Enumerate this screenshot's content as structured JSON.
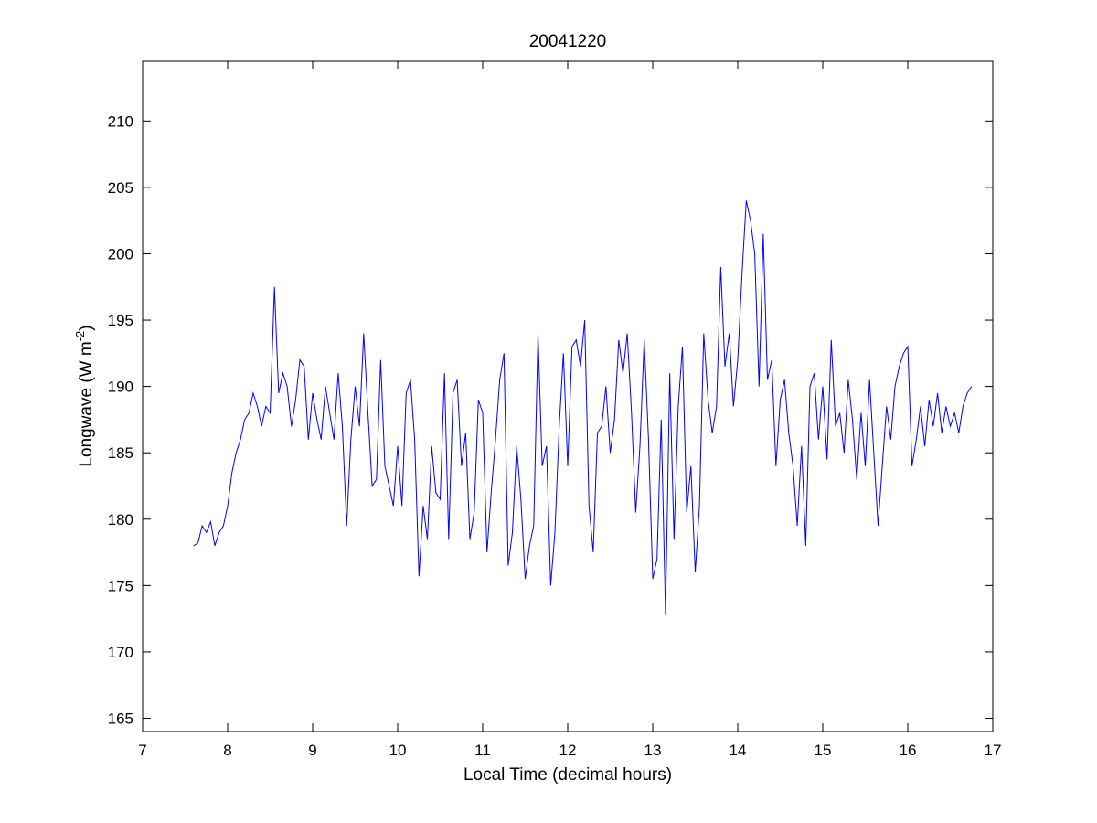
{
  "chart_data": {
    "type": "line",
    "title": "20041220",
    "xlabel": "Local Time (decimal hours)",
    "ylabel_main": "Longwave (W m",
    "ylabel_sup": "-2",
    "ylabel_close": ")",
    "xlim": [
      7,
      17
    ],
    "ylim": [
      164,
      214.5
    ],
    "xticks": [
      7,
      8,
      9,
      10,
      11,
      12,
      13,
      14,
      15,
      16,
      17
    ],
    "yticks": [
      165,
      170,
      175,
      180,
      185,
      190,
      195,
      200,
      205,
      210
    ],
    "grid": false,
    "line_color": "#0000ff",
    "series": [
      {
        "x": [
          7.6,
          7.65,
          7.7,
          7.75,
          7.8,
          7.85,
          7.9,
          7.95,
          8.0,
          8.05,
          8.1,
          8.15,
          8.2,
          8.25,
          8.3,
          8.35,
          8.4,
          8.45,
          8.5,
          8.55,
          8.6,
          8.65,
          8.7,
          8.75,
          8.8,
          8.85,
          8.9,
          8.95,
          9.0,
          9.05,
          9.1,
          9.15,
          9.2,
          9.25,
          9.3,
          9.35,
          9.4,
          9.45,
          9.5,
          9.55,
          9.6,
          9.65,
          9.7,
          9.75,
          9.8,
          9.85,
          9.9,
          9.95,
          10.0,
          10.05,
          10.1,
          10.15,
          10.2,
          10.25,
          10.3,
          10.35,
          10.4,
          10.45,
          10.5,
          10.55,
          10.6,
          10.65,
          10.7,
          10.75,
          10.8,
          10.85,
          10.9,
          10.95,
          11.0,
          11.05,
          11.1,
          11.15,
          11.2,
          11.25,
          11.3,
          11.35,
          11.4,
          11.45,
          11.5,
          11.55,
          11.6,
          11.65,
          11.7,
          11.75,
          11.8,
          11.85,
          11.9,
          11.95,
          12.0,
          12.05,
          12.1,
          12.15,
          12.2,
          12.25,
          12.3,
          12.35,
          12.4,
          12.45,
          12.5,
          12.55,
          12.6,
          12.65,
          12.7,
          12.75,
          12.8,
          12.85,
          12.9,
          12.95,
          13.0,
          13.05,
          13.1,
          13.15,
          13.2,
          13.25,
          13.3,
          13.35,
          13.4,
          13.45,
          13.5,
          13.55,
          13.6,
          13.65,
          13.7,
          13.75,
          13.8,
          13.85,
          13.9,
          13.95,
          14.0,
          14.05,
          14.1,
          14.15,
          14.2,
          14.25,
          14.3,
          14.35,
          14.4,
          14.45,
          14.5,
          14.55,
          14.6,
          14.65,
          14.7,
          14.75,
          14.8,
          14.85,
          14.9,
          14.95,
          15.0,
          15.05,
          15.1,
          15.15,
          15.2,
          15.25,
          15.3,
          15.35,
          15.4,
          15.45,
          15.5,
          15.55,
          15.6,
          15.65,
          15.7,
          15.75,
          15.8,
          15.85,
          15.9,
          15.95,
          16.0,
          16.05,
          16.1,
          16.15,
          16.2,
          16.25,
          16.3,
          16.35,
          16.4,
          16.45,
          16.5,
          16.55,
          16.6,
          16.65,
          16.7,
          16.75
        ],
        "values": [
          178.0,
          178.2,
          179.5,
          179.0,
          179.8,
          178.0,
          179.0,
          179.5,
          181.0,
          183.5,
          185.0,
          186.0,
          187.5,
          188.0,
          189.5,
          188.5,
          187.0,
          188.5,
          188.0,
          197.5,
          189.5,
          191.0,
          190.0,
          187.0,
          189.0,
          192.0,
          191.5,
          186.0,
          189.5,
          187.5,
          186.0,
          190.0,
          188.0,
          186.0,
          191.0,
          187.0,
          179.5,
          186.0,
          190.0,
          187.0,
          194.0,
          188.0,
          182.5,
          183.0,
          192.0,
          184.0,
          182.5,
          181.0,
          185.5,
          181.0,
          189.5,
          190.5,
          186.0,
          175.7,
          181.0,
          178.5,
          185.5,
          182.0,
          181.5,
          191.0,
          178.5,
          189.5,
          190.5,
          184.0,
          186.5,
          178.5,
          180.5,
          189.0,
          188.0,
          177.5,
          182.0,
          186.0,
          190.5,
          192.5,
          176.5,
          179.0,
          185.5,
          181.5,
          175.5,
          178.0,
          179.5,
          194.0,
          184.0,
          185.5,
          175.0,
          179.0,
          187.0,
          192.5,
          184.0,
          193.0,
          193.5,
          191.5,
          195.0,
          181.0,
          177.5,
          186.5,
          187.0,
          190.0,
          185.0,
          187.5,
          193.5,
          191.0,
          194.0,
          188.0,
          180.5,
          185.5,
          193.5,
          186.0,
          175.5,
          177.0,
          187.5,
          172.8,
          191.0,
          178.5,
          188.5,
          193.0,
          180.5,
          184.0,
          176.0,
          181.0,
          194.0,
          189.0,
          186.5,
          188.5,
          199.0,
          191.5,
          194.0,
          188.5,
          192.0,
          198.5,
          204.0,
          202.5,
          200.0,
          190.0,
          201.5,
          190.5,
          192.0,
          184.0,
          189.0,
          190.5,
          186.5,
          184.0,
          179.5,
          185.5,
          178.0,
          190.0,
          191.0,
          186.0,
          190.0,
          184.5,
          193.5,
          187.0,
          188.0,
          185.0,
          190.5,
          187.5,
          183.0,
          188.0,
          184.0,
          190.5,
          185.0,
          179.5,
          184.0,
          188.5,
          186.0,
          190.0,
          191.5,
          192.5,
          193.0,
          184.0,
          186.0,
          188.5,
          185.5,
          189.0,
          187.0,
          189.5,
          186.5,
          188.5,
          187.0,
          188.0,
          186.5,
          188.5,
          189.5,
          190.0
        ]
      }
    ]
  }
}
